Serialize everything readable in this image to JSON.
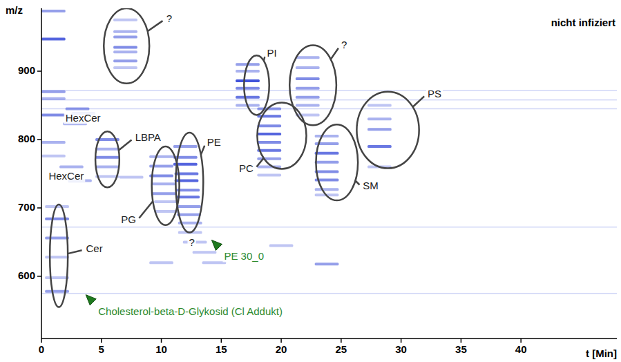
{
  "chart_data": {
    "type": "scatter",
    "title": "nicht infiziert",
    "x_label": "t [Min]",
    "y_label": "m/z",
    "xlim": [
      0,
      48
    ],
    "ylim": [
      509,
      992
    ],
    "xticks": [
      0,
      5,
      10,
      15,
      20,
      25,
      30,
      35,
      40
    ],
    "yticks": [
      600,
      700,
      800,
      900
    ],
    "color": "#2b3fd6",
    "marker": "dash",
    "x": [
      1.3,
      1.3,
      1.3,
      1.3,
      1.3,
      1.3,
      1.0,
      1.0,
      1.0,
      1.0,
      1.0,
      1.0,
      1.0,
      3.0,
      3.5,
      2.8,
      2.5,
      3.2,
      7.0,
      7.0,
      7.0,
      7.0,
      7.0,
      7.0,
      7.0,
      5.5,
      5.5,
      5.5,
      5.5,
      5.5,
      10.0,
      10.0,
      10.0,
      10.2,
      10.2,
      10.4,
      10.4,
      12.0,
      12.0,
      12.0,
      12.1,
      12.1,
      12.2,
      12.2,
      12.3,
      12.3,
      12.4,
      12.4,
      12.8,
      13.6,
      14.4,
      17.2,
      17.2,
      17.2,
      17.2,
      17.2,
      17.2,
      19.0,
      19.0,
      19.0,
      19.0,
      19.0,
      19.0,
      19.0,
      19.0,
      19.0,
      22.2,
      22.2,
      22.2,
      22.2,
      22.2,
      22.2,
      22.2,
      23.8,
      23.8,
      23.8,
      23.8,
      23.8,
      23.8,
      23.8,
      23.8,
      28.2,
      28.2,
      28.2,
      28.2,
      28.2,
      23.8,
      20.0,
      10.0,
      7.5
    ],
    "y": [
      578,
      598,
      628,
      656,
      684,
      702,
      988,
      947,
      870,
      860,
      836,
      796,
      776,
      845,
      838,
      823,
      760,
      740,
      975,
      958,
      950,
      935,
      928,
      915,
      905,
      800,
      786,
      774,
      760,
      746,
      775,
      761,
      747,
      735,
      721,
      709,
      695,
      790,
      774,
      764,
      750,
      740,
      726,
      716,
      702,
      690,
      678,
      664,
      650,
      635,
      620,
      910,
      900,
      886,
      875,
      862,
      850,
      845,
      834,
      820,
      808,
      796,
      784,
      772,
      760,
      748,
      920,
      905,
      889,
      875,
      862,
      850,
      836,
      805,
      794,
      780,
      767,
      753,
      741,
      727,
      719,
      850,
      830,
      815,
      790,
      760,
      618,
      645,
      620,
      745
    ],
    "intensity": [
      0.5,
      0.3,
      0.3,
      0.5,
      0.6,
      0.3,
      0.5,
      0.8,
      0.5,
      0.4,
      0.6,
      0.4,
      0.3,
      0.5,
      0.4,
      0.4,
      0.4,
      0.4,
      0.3,
      0.4,
      0.5,
      0.6,
      0.4,
      0.5,
      0.3,
      0.6,
      0.4,
      0.6,
      0.4,
      0.3,
      0.4,
      0.5,
      0.6,
      0.4,
      0.5,
      0.3,
      0.3,
      0.5,
      0.6,
      0.8,
      0.7,
      0.8,
      0.6,
      0.7,
      0.5,
      0.5,
      0.4,
      0.3,
      0.3,
      0.3,
      0.3,
      0.5,
      0.4,
      0.9,
      0.6,
      0.7,
      0.4,
      0.5,
      0.7,
      0.6,
      0.8,
      0.6,
      0.7,
      0.5,
      0.4,
      0.3,
      0.4,
      0.4,
      0.6,
      0.5,
      0.5,
      0.4,
      0.3,
      0.4,
      0.5,
      0.7,
      0.5,
      0.6,
      0.6,
      0.4,
      0.3,
      0.3,
      0.4,
      0.5,
      0.7,
      0.3,
      0.5,
      0.3,
      0.3,
      0.3
    ],
    "background_mz": [
      872,
      858,
      845,
      672,
      575
    ],
    "regions": [
      {
        "label": "?",
        "xlim": [
          5.2,
          9.0
        ],
        "ylim": [
          882,
          992
        ],
        "label_at": [
          10.3,
          976
        ]
      },
      {
        "label": "LBPA",
        "xlim": [
          4.5,
          6.5
        ],
        "ylim": [
          730,
          812
        ],
        "label_at": [
          7.7,
          802
        ]
      },
      {
        "label": "PG",
        "xlim": [
          9.2,
          11.5
        ],
        "ylim": [
          675,
          790
        ],
        "label_at": [
          8.0,
          682
        ]
      },
      {
        "label": "PE",
        "xlim": [
          11.2,
          13.5
        ],
        "ylim": [
          664,
          810
        ],
        "label_at": [
          13.7,
          795
        ]
      },
      {
        "label": "Cer",
        "xlim": [
          0.7,
          2.2
        ],
        "ylim": [
          555,
          705
        ],
        "label_at": [
          3.6,
          639
        ]
      },
      {
        "label": "PI",
        "xlim": [
          16.9,
          19.0
        ],
        "ylim": [
          836,
          923
        ],
        "label_at": [
          18.7,
          925
        ]
      },
      {
        "label": "?",
        "xlim": [
          20.7,
          24.6
        ],
        "ylim": [
          821,
          938
        ],
        "label_at": [
          24.9,
          937
        ]
      },
      {
        "label": "PC",
        "xlim": [
          18.0,
          22.1
        ],
        "ylim": [
          757,
          854
        ],
        "label_at": [
          17.8,
          757
        ]
      },
      {
        "label": "SM",
        "xlim": [
          22.9,
          26.4
        ],
        "ylim": [
          711,
          822
        ],
        "label_at": [
          26.7,
          731
        ]
      },
      {
        "label": "PS",
        "xlim": [
          26.3,
          31.5
        ],
        "ylim": [
          758,
          870
        ],
        "label_at": [
          32.1,
          866
        ]
      }
    ],
    "labels": [
      {
        "text": "HexCer",
        "at": [
          2.0,
          830
        ]
      },
      {
        "text": "HexCer",
        "at": [
          0.6,
          745
        ]
      },
      {
        "text": "?",
        "at": [
          12.3,
          648
        ]
      }
    ],
    "arrows": [
      {
        "text": "PE 30_0",
        "color": "#2e8b2e",
        "at": [
          14.2,
          653
        ]
      },
      {
        "text": "Cholesterol-beta-D-Glykosid (Cl Addukt)",
        "color": "#2e8b2e",
        "at": [
          3.7,
          573
        ]
      }
    ]
  }
}
